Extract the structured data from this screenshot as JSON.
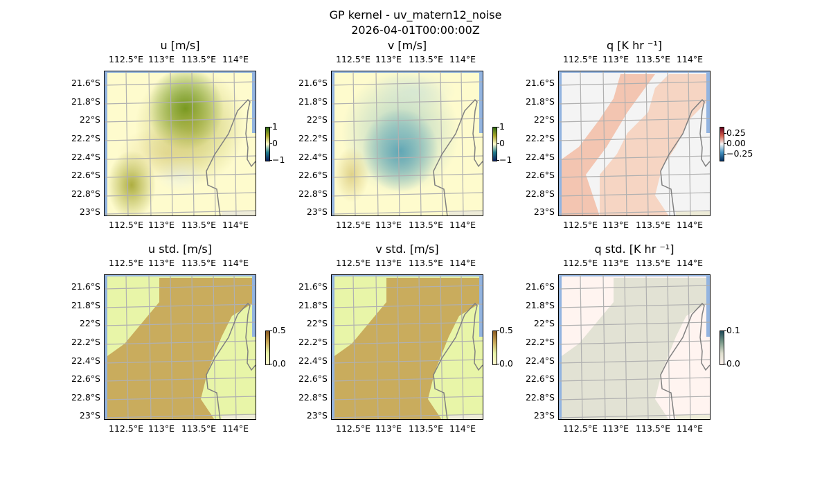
{
  "figure": {
    "title_line1": "GP kernel - uv_matern12_noise",
    "title_line2": "2026-04-01T00:00:00Z"
  },
  "lon_ticks": [
    "112.5°E",
    "113°E",
    "113.5°E",
    "114°E"
  ],
  "lat_ticks": [
    "21.6°S",
    "21.8°S",
    "22°S",
    "22.2°S",
    "22.4°S",
    "22.6°S",
    "22.8°S",
    "23°S"
  ],
  "panels": [
    {
      "title": "u [m/s]",
      "style": "u",
      "colorbar": {
        "ticks": [
          "1",
          "0",
          "−1"
        ],
        "colors": [
          "#0b1f5c",
          "#1f7a8a",
          "#fefbcd",
          "#a8a52a",
          "#2e6b12"
        ]
      }
    },
    {
      "title": "v [m/s]",
      "style": "v",
      "colorbar": {
        "ticks": [
          "1",
          "0",
          "−1"
        ],
        "colors": [
          "#0b1f5c",
          "#1f7a8a",
          "#fefbcd",
          "#a8a52a",
          "#2e6b12"
        ]
      }
    },
    {
      "title": "q [K hr ⁻¹]",
      "style": "q",
      "colorbar": {
        "ticks": [
          "0.25",
          "0.00",
          "−0.25"
        ],
        "colors": [
          "#053061",
          "#4393c3",
          "#f7f7f7",
          "#d6604d",
          "#67001f"
        ]
      }
    },
    {
      "title": "u std. [m/s]",
      "style": "ustd",
      "colorbar": {
        "ticks": [
          "0.5",
          "0.0"
        ],
        "colors": [
          "#fffad0",
          "#e8f5a8",
          "#c8a858",
          "#8a5a20"
        ]
      }
    },
    {
      "title": "v std. [m/s]",
      "style": "ustd",
      "colorbar": {
        "ticks": [
          "0.5",
          "0.0"
        ],
        "colors": [
          "#fffad0",
          "#e8f5a8",
          "#c8a858",
          "#8a5a20"
        ]
      }
    },
    {
      "title": "q std. [K hr ⁻¹]",
      "style": "qstd",
      "colorbar": {
        "ticks": [
          "0.1",
          "0.0"
        ],
        "colors": [
          "#fff5f0",
          "#e0e0d0",
          "#7a9a8a",
          "#1f4a5a"
        ]
      }
    }
  ]
}
